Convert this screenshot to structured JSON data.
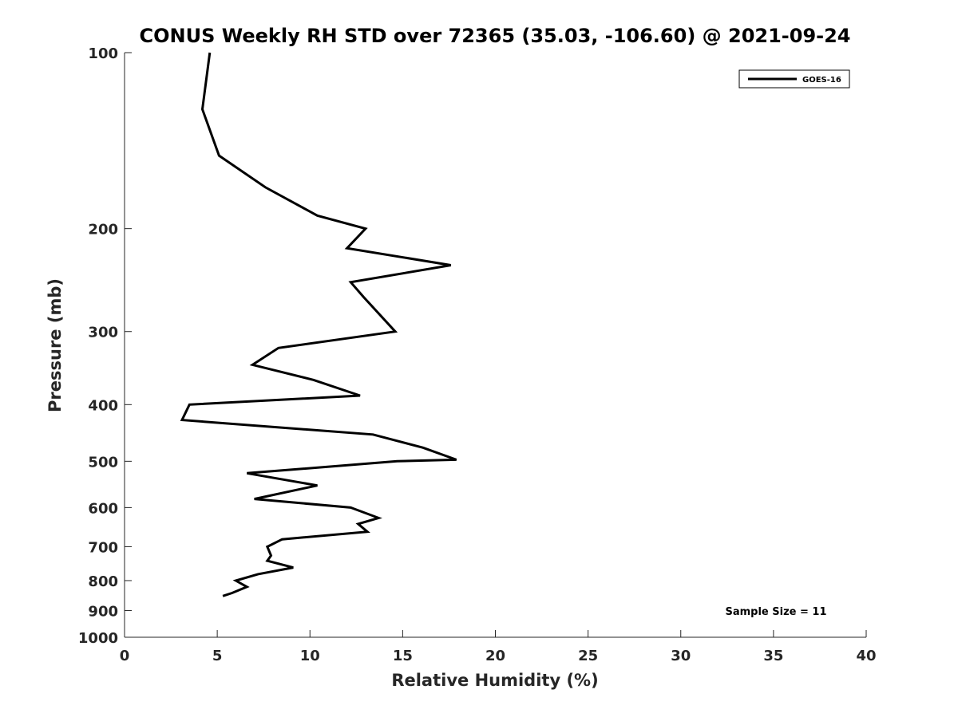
{
  "chart_data": {
    "type": "line",
    "title": "CONUS Weekly RH STD over 72365 (35.03, -106.60) @ 2021-09-24",
    "xlabel": "Relative Humidity (%)",
    "ylabel": "Pressure (mb)",
    "xlim": [
      0,
      40
    ],
    "ylim": [
      100,
      1000
    ],
    "y_scale": "log",
    "y_reversed": true,
    "x_ticks": [
      0,
      5,
      10,
      15,
      20,
      25,
      30,
      35,
      40
    ],
    "y_ticks": [
      100,
      200,
      300,
      400,
      500,
      600,
      700,
      800,
      900,
      1000
    ],
    "grid": false,
    "legend": {
      "position": "top-right",
      "entries": [
        "GOES-16"
      ]
    },
    "annotation": "Sample Size = 11",
    "series": [
      {
        "name": "GOES-16",
        "color": "#000000",
        "points": [
          {
            "x": 4.6,
            "y": 100
          },
          {
            "x": 4.2,
            "y": 125
          },
          {
            "x": 5.1,
            "y": 150
          },
          {
            "x": 7.6,
            "y": 170
          },
          {
            "x": 10.4,
            "y": 190
          },
          {
            "x": 13.0,
            "y": 200
          },
          {
            "x": 12.0,
            "y": 216
          },
          {
            "x": 17.6,
            "y": 231
          },
          {
            "x": 12.2,
            "y": 247
          },
          {
            "x": 12.9,
            "y": 262
          },
          {
            "x": 14.6,
            "y": 300
          },
          {
            "x": 8.3,
            "y": 320
          },
          {
            "x": 6.9,
            "y": 342
          },
          {
            "x": 10.2,
            "y": 363
          },
          {
            "x": 12.7,
            "y": 386
          },
          {
            "x": 3.5,
            "y": 400
          },
          {
            "x": 3.1,
            "y": 425
          },
          {
            "x": 13.4,
            "y": 450
          },
          {
            "x": 16.1,
            "y": 474
          },
          {
            "x": 17.9,
            "y": 497
          },
          {
            "x": 14.7,
            "y": 500
          },
          {
            "x": 6.6,
            "y": 524
          },
          {
            "x": 10.4,
            "y": 550
          },
          {
            "x": 7.0,
            "y": 580
          },
          {
            "x": 12.2,
            "y": 600
          },
          {
            "x": 13.7,
            "y": 625
          },
          {
            "x": 12.6,
            "y": 640
          },
          {
            "x": 13.1,
            "y": 660
          },
          {
            "x": 8.5,
            "y": 680
          },
          {
            "x": 7.7,
            "y": 700
          },
          {
            "x": 7.9,
            "y": 725
          },
          {
            "x": 7.7,
            "y": 740
          },
          {
            "x": 9.1,
            "y": 760
          },
          {
            "x": 7.2,
            "y": 780
          },
          {
            "x": 6.0,
            "y": 800
          },
          {
            "x": 6.6,
            "y": 820
          },
          {
            "x": 5.8,
            "y": 840
          },
          {
            "x": 5.3,
            "y": 850
          }
        ]
      }
    ]
  }
}
